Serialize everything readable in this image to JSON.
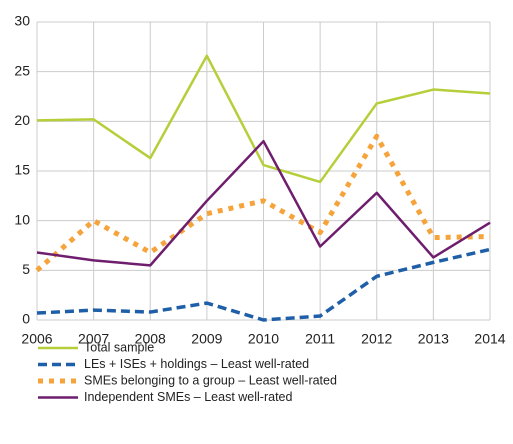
{
  "chart_data": {
    "type": "line",
    "categories": [
      "2006",
      "2007",
      "2008",
      "2009",
      "2010",
      "2011",
      "2012",
      "2013",
      "2014"
    ],
    "series": [
      {
        "name": "Total sample",
        "color": "#b5cf3a",
        "style": "solid",
        "values": [
          20.1,
          20.2,
          16.3,
          26.6,
          15.6,
          13.9,
          21.8,
          23.2,
          22.8
        ]
      },
      {
        "name": "LEs + ISEs + holdings – Least well-rated",
        "color": "#1f5fa8",
        "style": "dashed",
        "values": [
          0.7,
          1.0,
          0.8,
          1.7,
          0.0,
          0.4,
          4.4,
          5.8,
          7.1
        ]
      },
      {
        "name": "SMEs belonging to a group – Least well-rated",
        "color": "#f5a33a",
        "style": "dotted",
        "values": [
          5.0,
          10.0,
          6.8,
          10.7,
          12.0,
          8.8,
          18.5,
          8.3,
          8.4
        ]
      },
      {
        "name": "Independent SMEs – Least well-rated",
        "color": "#6f1e6e",
        "style": "solid",
        "values": [
          6.8,
          6.0,
          5.5,
          12.0,
          18.0,
          7.4,
          12.8,
          6.3,
          9.8
        ]
      }
    ],
    "ylim": [
      0,
      30
    ],
    "yticks": [
      0,
      5,
      10,
      15,
      20,
      25,
      30
    ],
    "grid": true,
    "legend": "bottom-left"
  }
}
